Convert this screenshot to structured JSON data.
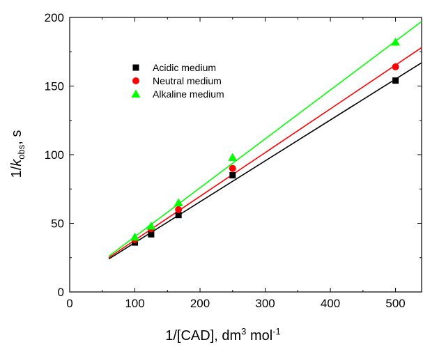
{
  "chart_data": {
    "type": "scatter",
    "title": "",
    "xlabel": {
      "main": "1/[CAD], dm",
      "sup1": "3",
      "mid": " mol",
      "sup2": "-1"
    },
    "ylabel": {
      "pre": "1/",
      "italic": "k",
      "sub": "obs",
      "post": ", s"
    },
    "xlim": [
      0,
      540
    ],
    "ylim": [
      0,
      200
    ],
    "xticks": [
      "0",
      "100",
      "200",
      "300",
      "400",
      "500"
    ],
    "xtick_values": [
      0,
      100,
      200,
      300,
      400,
      500
    ],
    "yticks": [
      "0",
      "50",
      "100",
      "150",
      "200"
    ],
    "ytick_values": [
      0,
      50,
      100,
      150,
      200
    ],
    "grid": false,
    "legend_position": "upper-left",
    "series": [
      {
        "name": "Acidic medium",
        "marker": "square",
        "color": "#000000",
        "x": [
          100,
          125,
          167,
          250,
          500
        ],
        "y": [
          36,
          42,
          56,
          85,
          154
        ],
        "fit": {
          "x": [
            60,
            540
          ],
          "y": [
            24,
            167
          ]
        }
      },
      {
        "name": "Neutral medium",
        "marker": "circle",
        "color": "#ff0000",
        "x": [
          100,
          125,
          167,
          250,
          500
        ],
        "y": [
          38,
          46,
          60,
          90,
          164
        ],
        "fit": {
          "x": [
            60,
            540
          ],
          "y": [
            25,
            178
          ]
        }
      },
      {
        "name": "Alkaline medium",
        "marker": "triangle",
        "color": "#00ff00",
        "x": [
          100,
          125,
          167,
          250,
          500
        ],
        "y": [
          40,
          48,
          65,
          98,
          182
        ],
        "fit": {
          "x": [
            60,
            540
          ],
          "y": [
            26,
            197
          ]
        }
      }
    ]
  }
}
